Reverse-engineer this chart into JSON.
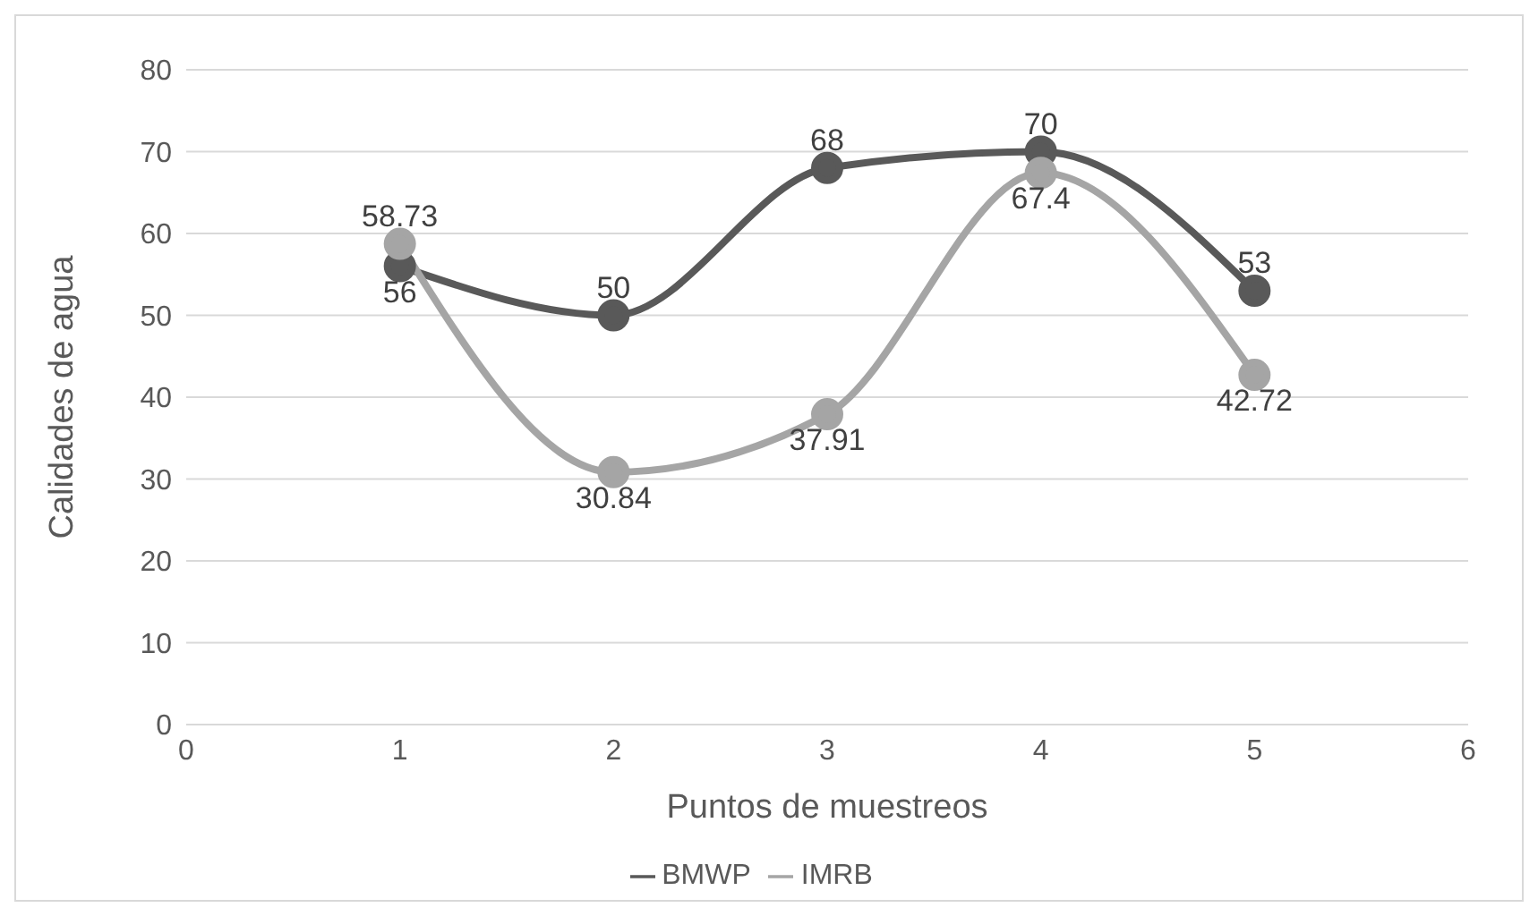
{
  "chart_data": {
    "type": "line",
    "xlabel": "Puntos de muestreos",
    "ylabel": "Calidades de agua",
    "x": [
      1,
      2,
      3,
      4,
      5
    ],
    "series": [
      {
        "name": "BMWP",
        "color": "#595959",
        "values": [
          56,
          50,
          68,
          70,
          53
        ]
      },
      {
        "name": "IMRB",
        "color": "#a5a5a5",
        "values": [
          58.73,
          30.84,
          37.91,
          67.4,
          42.72
        ]
      }
    ],
    "xlim": [
      0,
      6
    ],
    "xticks": [
      0,
      1,
      2,
      3,
      4,
      5,
      6
    ],
    "ylim": [
      0,
      80
    ],
    "yticks": [
      0,
      10,
      20,
      30,
      40,
      50,
      60,
      70,
      80
    ],
    "grid": "y",
    "legend": "bottom",
    "marker": "circle",
    "line_style": "solid",
    "data_labels": true
  }
}
